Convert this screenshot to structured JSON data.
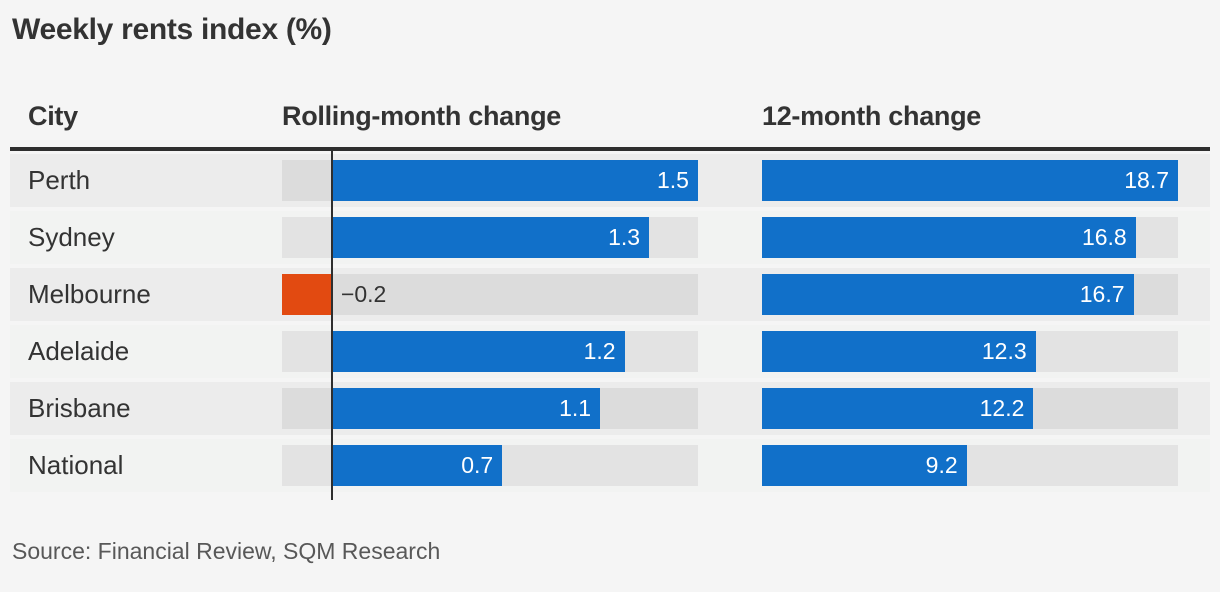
{
  "title": "Weekly rents index (%)",
  "source": "Source: Financial Review, SQM Research",
  "columns": {
    "city": "City",
    "rolling": "Rolling-month change",
    "twelve": "12-month change"
  },
  "colors": {
    "bar_positive": "#1170c9",
    "bar_negative": "#e24a11",
    "axis_line": "#2e2e2e",
    "header_rule": "#2e2e2e",
    "background": "#f5f5f5"
  },
  "chart_data": {
    "type": "bar",
    "orientation": "horizontal",
    "title": "Weekly rents index (%)",
    "categories": [
      "Perth",
      "Sydney",
      "Melbourne",
      "Adelaide",
      "Brisbane",
      "National"
    ],
    "series": [
      {
        "name": "Rolling-month change",
        "values": [
          1.5,
          1.3,
          -0.2,
          1.2,
          1.1,
          0.7
        ],
        "labels": [
          "1.5",
          "1.3",
          "−0.2",
          "1.2",
          "1.1",
          "0.7"
        ],
        "xlim": [
          -0.2,
          1.5
        ]
      },
      {
        "name": "12-month change",
        "values": [
          18.7,
          16.8,
          16.7,
          12.3,
          12.2,
          9.2
        ],
        "labels": [
          "18.7",
          "16.8",
          "16.7",
          "12.3",
          "12.2",
          "9.2"
        ],
        "xlim": [
          0,
          18.7
        ]
      }
    ],
    "value_labels_inside_bars": true,
    "negative_label_outside": true,
    "grid": false,
    "legend": "none",
    "source": "Source: Financial Review, SQM Research"
  }
}
